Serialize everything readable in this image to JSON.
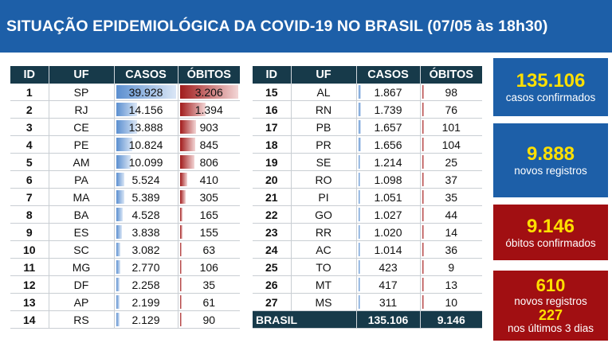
{
  "header": {
    "title": "SITUAÇÃO EPIDEMIOLÓGICA DA COVID-19 NO BRASIL (07/05 às 18h30)"
  },
  "table": {
    "columns": [
      "ID",
      "UF",
      "CASOS",
      "ÓBITOS"
    ],
    "max_casos": 39928,
    "max_obitos": 3206,
    "rows_left": [
      {
        "id": "1",
        "uf": "SP",
        "casos": "39.928",
        "obitos": "3.206",
        "c": 39928,
        "o": 3206
      },
      {
        "id": "2",
        "uf": "RJ",
        "casos": "14.156",
        "obitos": "1.394",
        "c": 14156,
        "o": 1394
      },
      {
        "id": "3",
        "uf": "CE",
        "casos": "13.888",
        "obitos": "903",
        "c": 13888,
        "o": 903
      },
      {
        "id": "4",
        "uf": "PE",
        "casos": "10.824",
        "obitos": "845",
        "c": 10824,
        "o": 845
      },
      {
        "id": "5",
        "uf": "AM",
        "casos": "10.099",
        "obitos": "806",
        "c": 10099,
        "o": 806
      },
      {
        "id": "6",
        "uf": "PA",
        "casos": "5.524",
        "obitos": "410",
        "c": 5524,
        "o": 410
      },
      {
        "id": "7",
        "uf": "MA",
        "casos": "5.389",
        "obitos": "305",
        "c": 5389,
        "o": 305
      },
      {
        "id": "8",
        "uf": "BA",
        "casos": "4.528",
        "obitos": "165",
        "c": 4528,
        "o": 165
      },
      {
        "id": "9",
        "uf": "ES",
        "casos": "3.838",
        "obitos": "155",
        "c": 3838,
        "o": 155
      },
      {
        "id": "10",
        "uf": "SC",
        "casos": "3.082",
        "obitos": "63",
        "c": 3082,
        "o": 63
      },
      {
        "id": "11",
        "uf": "MG",
        "casos": "2.770",
        "obitos": "106",
        "c": 2770,
        "o": 106
      },
      {
        "id": "12",
        "uf": "DF",
        "casos": "2.258",
        "obitos": "35",
        "c": 2258,
        "o": 35
      },
      {
        "id": "13",
        "uf": "AP",
        "casos": "2.199",
        "obitos": "61",
        "c": 2199,
        "o": 61
      },
      {
        "id": "14",
        "uf": "RS",
        "casos": "2.129",
        "obitos": "90",
        "c": 2129,
        "o": 90
      }
    ],
    "rows_right": [
      {
        "id": "15",
        "uf": "AL",
        "casos": "1.867",
        "obitos": "98",
        "c": 1867,
        "o": 98
      },
      {
        "id": "16",
        "uf": "RN",
        "casos": "1.739",
        "obitos": "76",
        "c": 1739,
        "o": 76
      },
      {
        "id": "17",
        "uf": "PB",
        "casos": "1.657",
        "obitos": "101",
        "c": 1657,
        "o": 101
      },
      {
        "id": "18",
        "uf": "PR",
        "casos": "1.656",
        "obitos": "104",
        "c": 1656,
        "o": 104
      },
      {
        "id": "19",
        "uf": "SE",
        "casos": "1.214",
        "obitos": "25",
        "c": 1214,
        "o": 25
      },
      {
        "id": "20",
        "uf": "RO",
        "casos": "1.098",
        "obitos": "37",
        "c": 1098,
        "o": 37
      },
      {
        "id": "21",
        "uf": "PI",
        "casos": "1.051",
        "obitos": "35",
        "c": 1051,
        "o": 35
      },
      {
        "id": "22",
        "uf": "GO",
        "casos": "1.027",
        "obitos": "44",
        "c": 1027,
        "o": 44
      },
      {
        "id": "23",
        "uf": "RR",
        "casos": "1.020",
        "obitos": "14",
        "c": 1020,
        "o": 14
      },
      {
        "id": "24",
        "uf": "AC",
        "casos": "1.014",
        "obitos": "36",
        "c": 1014,
        "o": 36
      },
      {
        "id": "25",
        "uf": "TO",
        "casos": "423",
        "obitos": "9",
        "c": 423,
        "o": 9
      },
      {
        "id": "26",
        "uf": "MT",
        "casos": "417",
        "obitos": "13",
        "c": 417,
        "o": 13
      },
      {
        "id": "27",
        "uf": "MS",
        "casos": "311",
        "obitos": "10",
        "c": 311,
        "o": 10
      }
    ],
    "total": {
      "label": "BRASIL",
      "casos": "135.106",
      "obitos": "9.146"
    }
  },
  "cards": {
    "confirmed_cases": {
      "value": "135.106",
      "label": "casos confirmados",
      "color": "#1d5fa8"
    },
    "new_cases": {
      "value": "9.888",
      "label": "novos registros",
      "color": "#1d5fa8"
    },
    "confirmed_deaths": {
      "value": "9.146",
      "label": "óbitos confirmados",
      "color": "#a10f12"
    },
    "new_deaths": {
      "value": "610",
      "label": "novos registros",
      "value2": "227",
      "label2": "nos últimos 3 dias",
      "color": "#a10f12"
    }
  }
}
